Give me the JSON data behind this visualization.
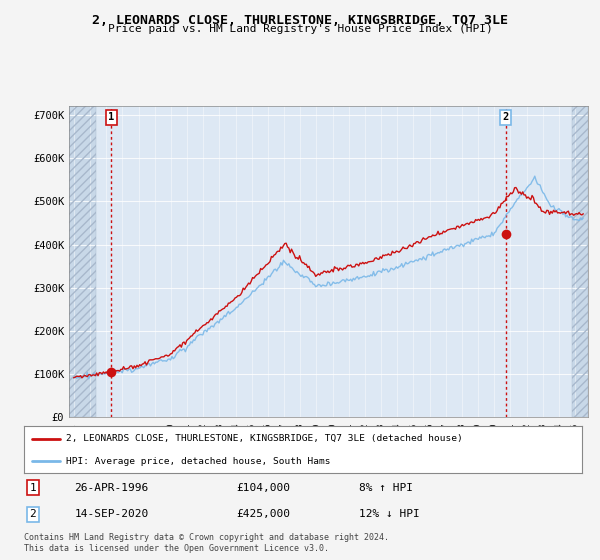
{
  "title": "2, LEONARDS CLOSE, THURLESTONE, KINGSBRIDGE, TQ7 3LE",
  "subtitle": "Price paid vs. HM Land Registry's House Price Index (HPI)",
  "ylabel_ticks": [
    "£0",
    "£100K",
    "£200K",
    "£300K",
    "£400K",
    "£500K",
    "£600K",
    "£700K"
  ],
  "ytick_values": [
    0,
    100000,
    200000,
    300000,
    400000,
    500000,
    600000,
    700000
  ],
  "ylim": [
    0,
    720000
  ],
  "xlim_start": 1993.7,
  "xlim_end": 2025.8,
  "sale1_date": 1996.32,
  "sale1_price": 104000,
  "sale2_date": 2020.71,
  "sale2_price": 425000,
  "hpi_color": "#7ab8e8",
  "price_color": "#cc1111",
  "legend_price_label": "2, LEONARDS CLOSE, THURLESTONE, KINGSBRIDGE, TQ7 3LE (detached house)",
  "legend_hpi_label": "HPI: Average price, detached house, South Hams",
  "table_row1": [
    "1",
    "26-APR-1996",
    "£104,000",
    "8% ↑ HPI"
  ],
  "table_row2": [
    "2",
    "14-SEP-2020",
    "£425,000",
    "12% ↓ HPI"
  ],
  "footer": "Contains HM Land Registry data © Crown copyright and database right 2024.\nThis data is licensed under the Open Government Licence v3.0.",
  "bg_color": "#f4f4f4",
  "plot_bg_color": "#dde8f4",
  "hatch_color": "#c0ccd8"
}
